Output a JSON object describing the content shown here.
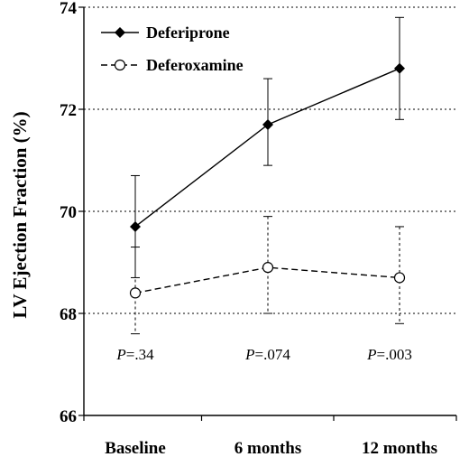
{
  "chart_data": {
    "type": "line",
    "ylabel": "LV Ejection Fraction (%)",
    "xlabel": "",
    "categories": [
      "Baseline",
      "6 months",
      "12 months"
    ],
    "ylim": [
      66,
      74
    ],
    "yticks": [
      66,
      68,
      70,
      72,
      74
    ],
    "grid": "horizontal dotted",
    "legend_position": "top-left",
    "series": [
      {
        "name": "Deferiprone",
        "marker": "filled-diamond",
        "line": "solid",
        "color": "#000000",
        "values": [
          69.7,
          71.7,
          72.8
        ],
        "error_low": [
          68.7,
          70.9,
          71.8
        ],
        "error_high": [
          70.7,
          72.6,
          73.8
        ]
      },
      {
        "name": "Deferoxamine",
        "marker": "open-circle",
        "line": "dashed",
        "color": "#000000",
        "values": [
          68.4,
          68.9,
          68.7
        ],
        "error_low": [
          67.6,
          68.0,
          67.8
        ],
        "error_high": [
          69.3,
          69.9,
          69.7
        ]
      }
    ],
    "annotations": [
      {
        "prefix": "P",
        "text": "=.34"
      },
      {
        "prefix": "P",
        "text": "=.074"
      },
      {
        "prefix": "P",
        "text": "=.003"
      }
    ]
  }
}
